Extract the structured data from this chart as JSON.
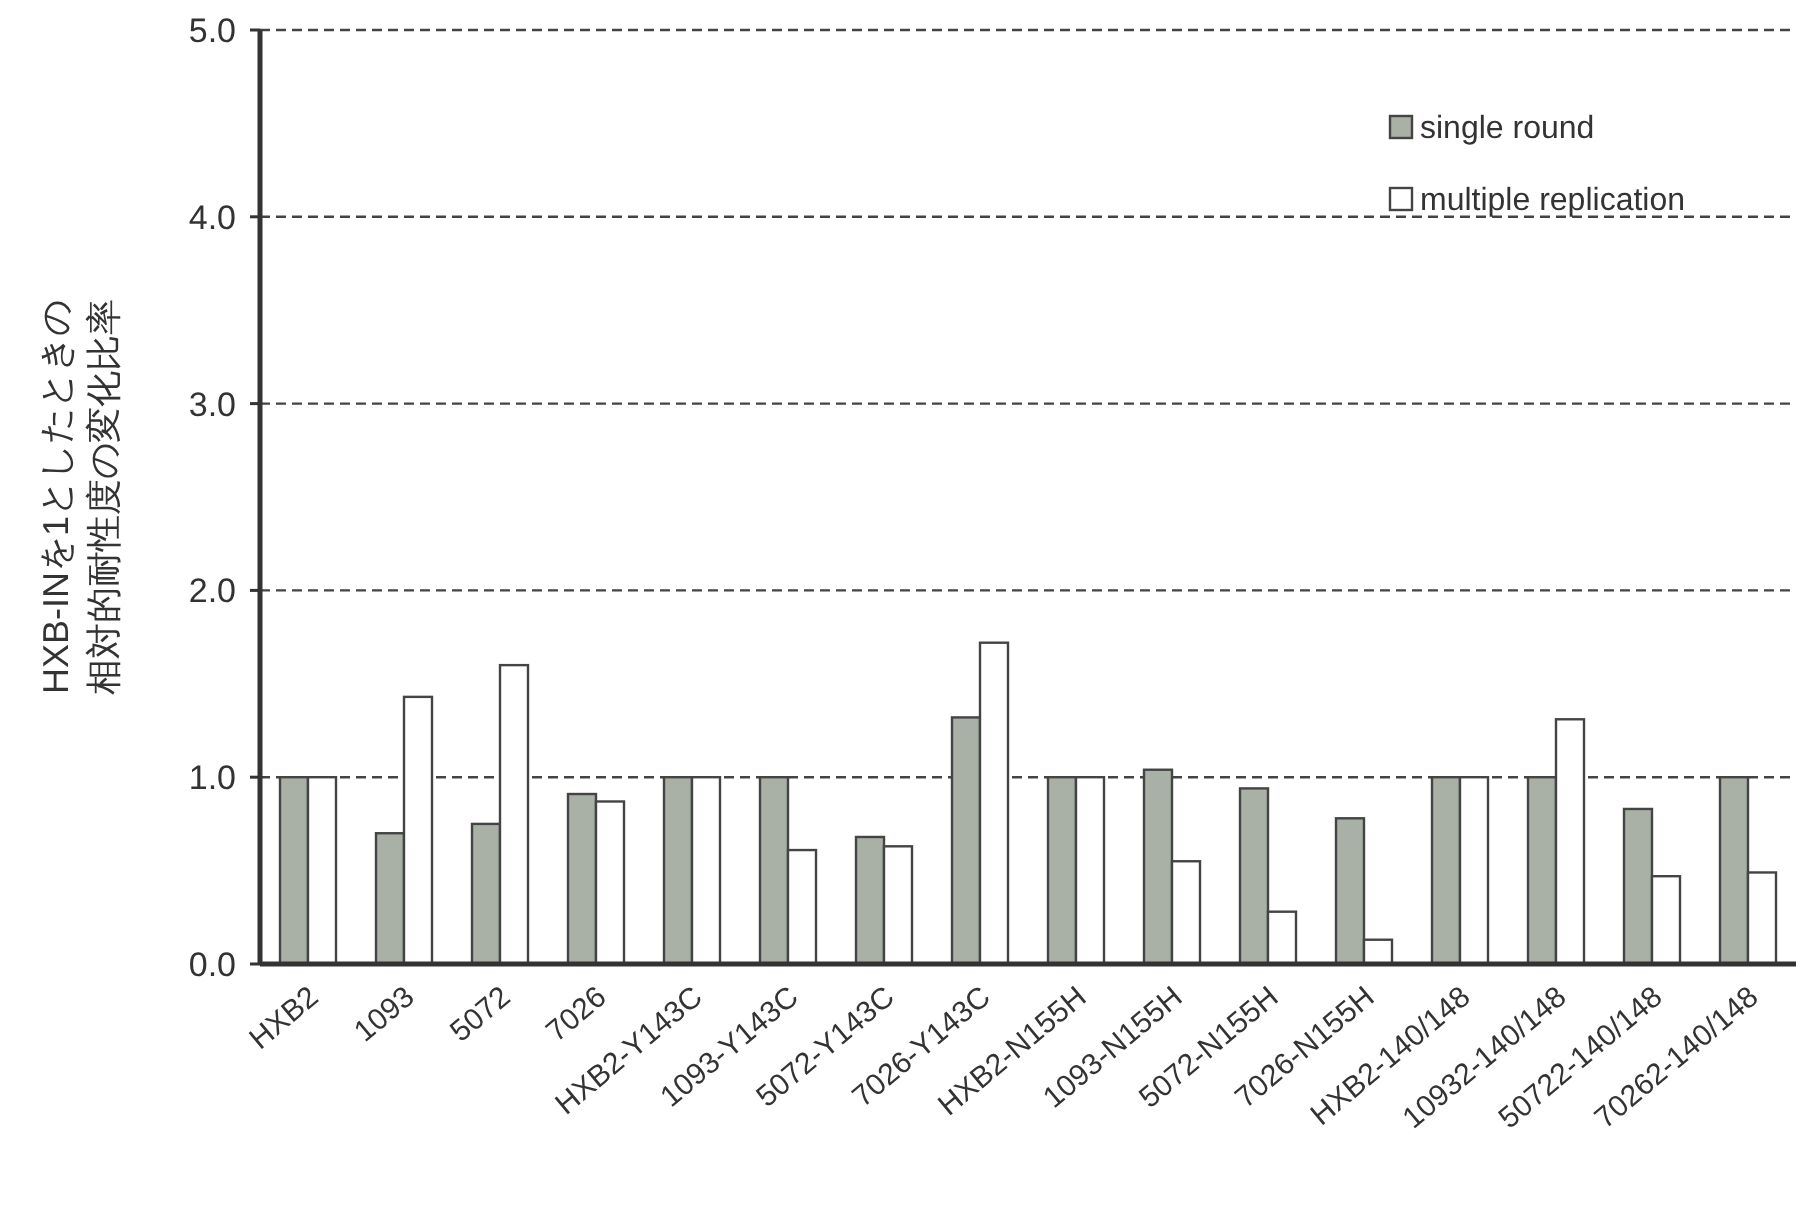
{
  "chart_data": {
    "type": "bar",
    "ylabel": "HXB-INを1としたときの相対的耐性度の変化比率",
    "categories": [
      "HXB2",
      "1093",
      "5072",
      "7026",
      "HXB2-Y143C",
      "1093-Y143C",
      "5072-Y143C",
      "7026-Y143C",
      "HXB2-N155H",
      "1093-N155H",
      "5072-N155H",
      "7026-N155H",
      "HXB2-140/148",
      "10932-140/148",
      "50722-140/148",
      "70262-140/148"
    ],
    "series": [
      {
        "name": "single round",
        "color": "#a9b1a6",
        "values": [
          1.0,
          0.7,
          0.75,
          0.91,
          1.0,
          1.0,
          0.68,
          1.32,
          1.0,
          1.04,
          0.94,
          0.78,
          1.0,
          1.0,
          0.83,
          1.0
        ]
      },
      {
        "name": "multiple replication",
        "color": "#ffffff",
        "values": [
          1.0,
          1.43,
          1.6,
          0.87,
          1.0,
          0.61,
          0.63,
          1.72,
          1.0,
          0.55,
          0.28,
          0.13,
          1.0,
          1.31,
          0.47,
          0.49
        ]
      }
    ],
    "ylim": [
      0,
      5
    ],
    "yticks": [
      {
        "value": 0,
        "label": "0.0"
      },
      {
        "value": 1,
        "label": "1.0"
      },
      {
        "value": 2,
        "label": "2.0"
      },
      {
        "value": 3,
        "label": "3.0"
      },
      {
        "value": 4,
        "label": "4.0"
      },
      {
        "value": 5,
        "label": "5.0"
      }
    ],
    "grid": "y",
    "legend": "top right"
  }
}
